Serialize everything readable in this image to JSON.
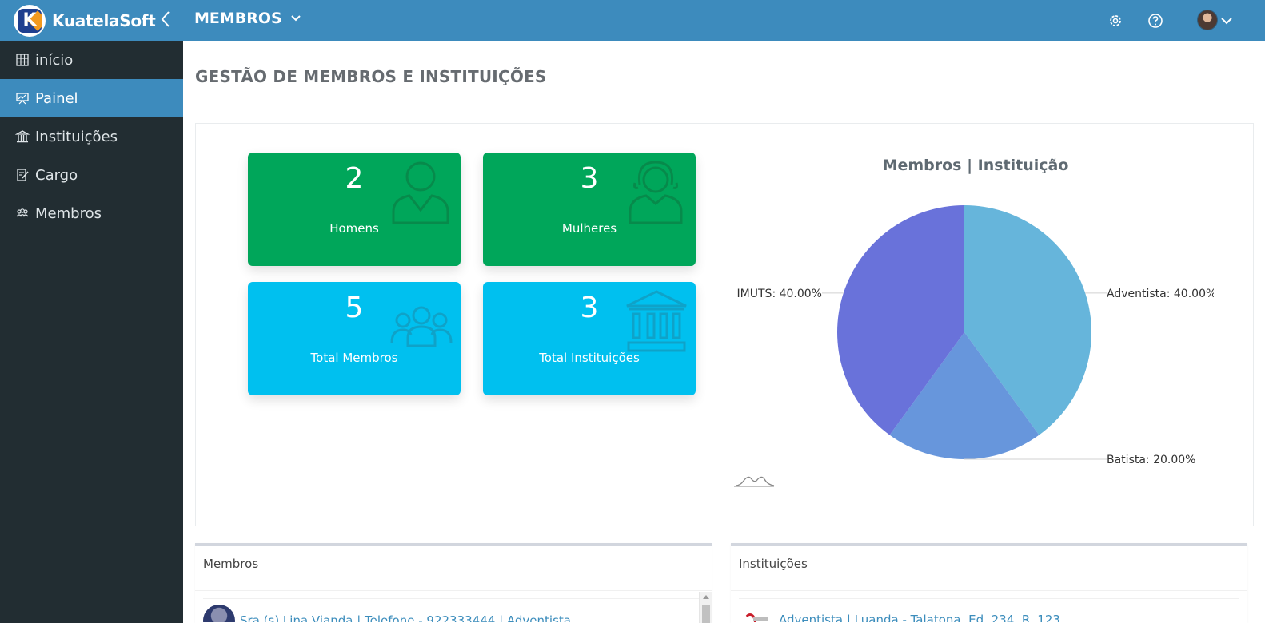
{
  "app": {
    "brand": "KuatelaSoft",
    "logo_letter": "K",
    "module": "MEMBROS"
  },
  "topbar": {
    "icons": [
      "gear-icon",
      "help-icon",
      "avatar",
      "chevron-down-icon"
    ]
  },
  "sidebar": {
    "items": [
      {
        "label": "início",
        "icon": "home-grid-icon",
        "active": false
      },
      {
        "label": "Painel",
        "icon": "presentation-board-icon",
        "active": true
      },
      {
        "label": "Instituições",
        "icon": "bank-icon",
        "active": false
      },
      {
        "label": "Cargo",
        "icon": "edit-document-icon",
        "active": false
      },
      {
        "label": "Membros",
        "icon": "group-icon",
        "active": false
      }
    ]
  },
  "page": {
    "title": "GESTÃO DE MEMBROS E INSTITUIÇÕES"
  },
  "stats": [
    {
      "value": "2",
      "label": "Homens",
      "color": "#00a65a",
      "icon": "male-user-icon"
    },
    {
      "value": "3",
      "label": "Mulheres",
      "color": "#00a65a",
      "icon": "female-user-icon"
    },
    {
      "value": "5",
      "label": "Total Membros",
      "color": "#00c0ef",
      "icon": "group-users-icon"
    },
    {
      "value": "3",
      "label": "Total Instituições",
      "color": "#00c0ef",
      "icon": "institution-icon"
    }
  ],
  "chart_data": {
    "type": "pie",
    "title": "Membros | Instituição",
    "slices": [
      {
        "name": "Adventista",
        "percent": 40.0,
        "label": "Adventista: 40.00%",
        "color": "#66b5db"
      },
      {
        "name": "Batista",
        "percent": 20.0,
        "label": "Batista: 20.00%",
        "color": "#6796dc"
      },
      {
        "name": "IMUTS",
        "percent": 40.0,
        "label": "IMUTS: 40.00%",
        "color": "#6972da"
      }
    ]
  },
  "boxes": {
    "members": {
      "title": "Membros",
      "first_row": "Sra (s) Lina Vianda | Telefone - 922333444 | Adventista"
    },
    "institutions": {
      "title": "Instituições",
      "first_row": "Adventista | Luanda - Talatona, Ed. 234, R. 123"
    }
  }
}
